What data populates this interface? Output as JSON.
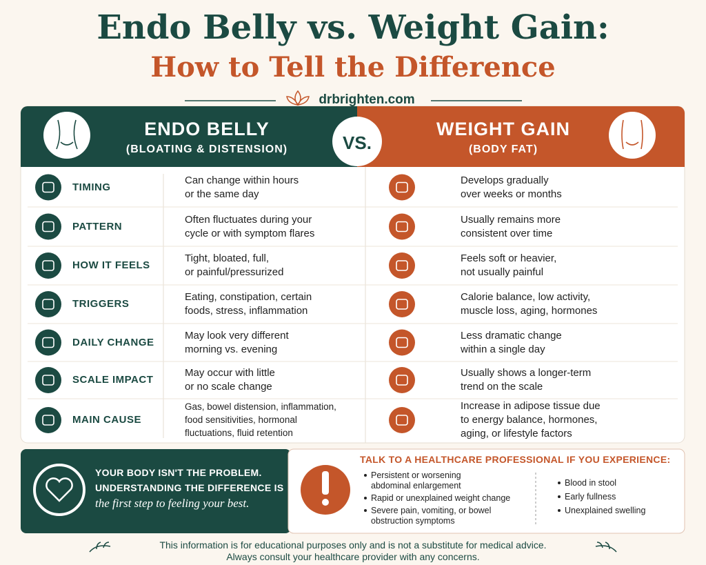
{
  "header": {
    "title_line1": "Endo Belly vs. Weight Gain:",
    "title_line2": "How to Tell the Difference",
    "site": "drbrighten.com"
  },
  "columns": {
    "left_title": "ENDO BELLY",
    "left_subtitle": "(BLOATING & DISTENSION)",
    "vs": "VS.",
    "right_title": "WEIGHT GAIN",
    "right_subtitle": "(BODY FAT)"
  },
  "rows": [
    {
      "label": "TIMING",
      "endo": [
        "Can change within hours",
        "or the same day"
      ],
      "weight": [
        "Develops gradually",
        "over weeks or months"
      ]
    },
    {
      "label": "PATTERN",
      "endo": [
        "Often fluctuates during your",
        "cycle or with symptom flares"
      ],
      "weight": [
        "Usually remains more",
        "consistent over time"
      ]
    },
    {
      "label": "HOW IT FEELS",
      "endo": [
        "Tight, bloated, full,",
        "or painful/pressurized"
      ],
      "weight": [
        "Feels soft or heavier,",
        "not usually painful"
      ]
    },
    {
      "label": "TRIGGERS",
      "endo": [
        "Eating, constipation, certain",
        "foods, stress, inflammation"
      ],
      "weight": [
        "Calorie balance, low activity,",
        "muscle loss, aging, hormones"
      ]
    },
    {
      "label": "DAILY CHANGE",
      "endo": [
        "May look very different",
        "morning vs. evening"
      ],
      "weight": [
        "Less dramatic change",
        "within a single day"
      ]
    },
    {
      "label": "SCALE IMPACT",
      "endo": [
        "May occur with little",
        "or no scale change"
      ],
      "weight": [
        "Usually shows a longer-term",
        "trend on the scale"
      ]
    },
    {
      "label": "MAIN CAUSE",
      "endo": [
        "Gas, bowel distension, inflammation,",
        "food sensitivities, hormonal",
        "fluctuations, fluid retention"
      ],
      "weight": [
        "Increase in adipose tissue due",
        "to energy balance, hormones,",
        "aging, or lifestyle factors"
      ]
    }
  ],
  "callout": {
    "line1": "YOUR BODY ISN'T THE PROBLEM.",
    "line2": "UNDERSTANDING THE DIFFERENCE IS",
    "line3": "the first step to feeling your best."
  },
  "warning": {
    "title": "TALK TO A HEALTHCARE PROFESSIONAL IF YOU EXPERIENCE:",
    "bullets_left": [
      [
        "Persistent or worsening",
        "abdominal enlargement"
      ],
      [
        "Rapid or unexplained weight change"
      ],
      [
        "Severe pain, vomiting, or bowel",
        "obstruction symptoms"
      ]
    ],
    "bullets_right": [
      "Blood in stool",
      "Early fullness",
      "Unexplained swelling"
    ]
  },
  "footer": {
    "line1": "This information is for educational purposes only and is not a substitute for medical advice.",
    "line2": "Always consult your healthcare provider with any concerns."
  }
}
